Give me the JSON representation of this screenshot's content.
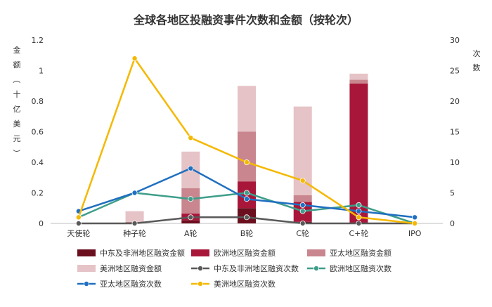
{
  "chart_data": {
    "type": "bar+line",
    "title": "全球各地区投融资事件次数和金额（按轮次）",
    "categories": [
      "天使轮",
      "种子轮",
      "A轮",
      "B轮",
      "C轮",
      "C+轮",
      "IPO"
    ],
    "y_left": {
      "label": "金额（十亿美元）",
      "ylim": [
        0,
        1.2
      ],
      "ticks": [
        "0",
        "0.2",
        "0.4",
        "0.6",
        "0.8",
        "1",
        "1.2"
      ]
    },
    "y_right": {
      "label": "次数",
      "ylim": [
        0,
        30
      ],
      "ticks": [
        "0",
        "5",
        "10",
        "15",
        "20",
        "25",
        "30"
      ]
    },
    "bar_series": [
      {
        "name": "中东及非洲地区融资金额",
        "color": "#6b0f1e",
        "values": [
          0,
          0,
          0.02,
          0.1,
          0.01,
          0,
          0
        ]
      },
      {
        "name": "欧洲地区融资金额",
        "color": "#a8173a",
        "values": [
          0,
          0,
          0.045,
          0.175,
          0.13,
          0.915,
          0
        ]
      },
      {
        "name": "亚太地区融资金额",
        "color": "#c9868e",
        "values": [
          0,
          0.01,
          0.165,
          0.325,
          0.045,
          0.025,
          0
        ]
      },
      {
        "name": "美洲地区融资金额",
        "color": "#e5c3c6",
        "values": [
          0,
          0.07,
          0.24,
          0.3,
          0.58,
          0.04,
          0
        ]
      }
    ],
    "line_series": [
      {
        "name": "中东及非洲地区融资次数",
        "color": "#595959",
        "values": [
          0,
          0,
          1,
          1,
          0,
          0,
          0
        ]
      },
      {
        "name": "欧洲地区融资次数",
        "color": "#3e9e8a",
        "values": [
          1,
          5,
          4,
          5,
          2,
          3,
          0
        ]
      },
      {
        "name": "亚太地区融资次数",
        "color": "#1f6fc0",
        "values": [
          2,
          5,
          9,
          4,
          3,
          2,
          1
        ]
      },
      {
        "name": "美洲地区融资次数",
        "color": "#f5b800",
        "values": [
          1,
          27,
          14,
          10,
          7,
          1,
          0
        ]
      }
    ],
    "legend_position": "bottom",
    "grid": false
  }
}
